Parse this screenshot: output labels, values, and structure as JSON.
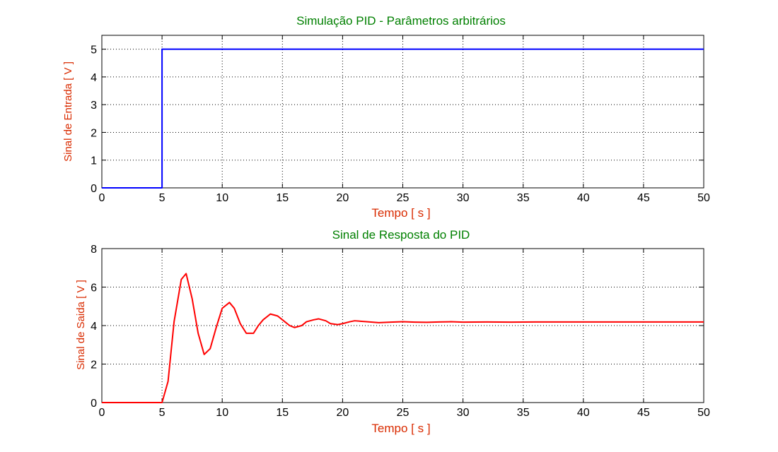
{
  "chart_data": [
    {
      "type": "line",
      "title": "Simulação PID - Parâmetros arbitrários",
      "xlabel": "Tempo [ s ]",
      "ylabel": "Sinal de Entrada [ V ]",
      "xlim": [
        0,
        50
      ],
      "ylim": [
        0,
        5.5
      ],
      "xticks": [
        "0",
        "5",
        "10",
        "15",
        "20",
        "25",
        "30",
        "35",
        "40",
        "45",
        "50"
      ],
      "yticks": [
        "0",
        "1",
        "2",
        "3",
        "4",
        "5"
      ],
      "grid": true,
      "colors": {
        "title": "#008000",
        "labels": "#d92b00",
        "series": "#0000ff"
      },
      "series": [
        {
          "x": [
            0,
            5,
            5,
            50
          ],
          "y": [
            0,
            0,
            5,
            5
          ]
        }
      ]
    },
    {
      "type": "line",
      "title": "Sinal de Resposta do PID",
      "xlabel": "Tempo [ s ]",
      "ylabel": "Sinal de Saida [ V ]",
      "xlim": [
        0,
        50
      ],
      "ylim": [
        0,
        8
      ],
      "xticks": [
        "0",
        "5",
        "10",
        "15",
        "20",
        "25",
        "30",
        "35",
        "40",
        "45",
        "50"
      ],
      "yticks": [
        "0",
        "2",
        "4",
        "6",
        "8"
      ],
      "grid": true,
      "colors": {
        "title": "#008000",
        "labels": "#d92b00",
        "series": "#ff0000"
      },
      "series": [
        {
          "x": [
            0,
            5,
            5.5,
            6,
            6.6,
            7,
            7.5,
            8,
            8.5,
            9,
            9.5,
            10,
            10.6,
            11,
            11.5,
            12,
            12.6,
            13,
            13.4,
            14,
            14.6,
            15,
            15.6,
            16,
            16.6,
            17,
            17.6,
            18,
            18.6,
            19,
            19.6,
            20,
            20.6,
            21,
            22,
            23,
            24,
            25,
            26,
            27,
            28,
            29,
            30,
            32,
            34,
            36,
            38,
            40,
            45,
            50
          ],
          "y": [
            0,
            0,
            1.1,
            4.2,
            6.4,
            6.7,
            5.4,
            3.6,
            2.5,
            2.8,
            3.9,
            4.9,
            5.2,
            4.9,
            4.1,
            3.6,
            3.6,
            4.0,
            4.3,
            4.6,
            4.5,
            4.3,
            4.0,
            3.9,
            4.0,
            4.2,
            4.3,
            4.35,
            4.25,
            4.1,
            4.05,
            4.1,
            4.2,
            4.25,
            4.2,
            4.15,
            4.18,
            4.2,
            4.18,
            4.17,
            4.19,
            4.2,
            4.18,
            4.19,
            4.18,
            4.19,
            4.19,
            4.19,
            4.19,
            4.19
          ]
        }
      ]
    }
  ]
}
